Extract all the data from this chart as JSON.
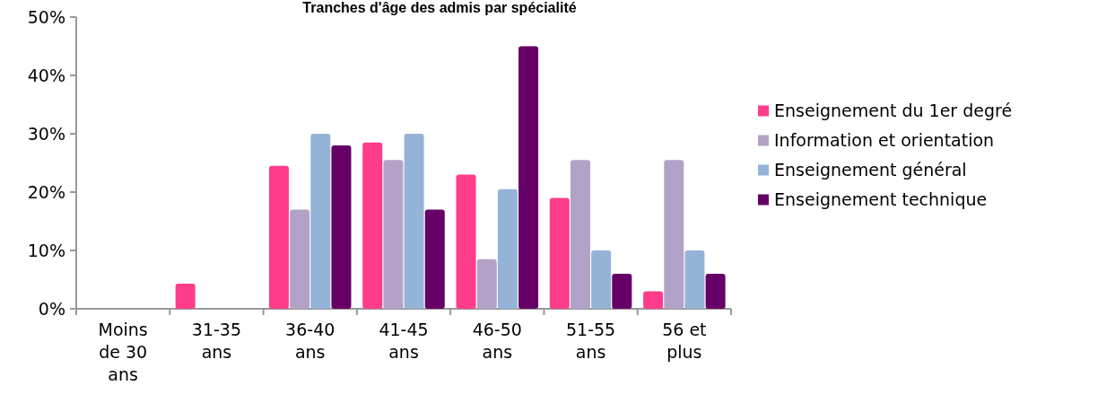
{
  "chart_data": {
    "type": "bar",
    "title": "Tranches d'âge des admis par spécialité",
    "categories": [
      "Moins de 30 ans",
      "31-35 ans",
      "36-40 ans",
      "41-45 ans",
      "46-50 ans",
      "51-55 ans",
      "56 et plus"
    ],
    "series": [
      {
        "name": "Enseignement du 1er degré",
        "color": "#ff3d8b",
        "values": [
          0,
          4.3,
          24.5,
          28.5,
          23,
          19,
          3
        ]
      },
      {
        "name": "Information et orientation",
        "color": "#b3a2c7",
        "values": [
          0,
          0,
          17,
          25.5,
          8.5,
          25.5,
          25.5
        ]
      },
      {
        "name": "Enseignement général",
        "color": "#95b3d7",
        "values": [
          0,
          0,
          30,
          30,
          20.5,
          10,
          10
        ]
      },
      {
        "name": "Enseignement technique",
        "color": "#660066",
        "values": [
          0,
          0,
          28,
          17,
          45,
          6,
          6
        ]
      }
    ],
    "ylim": [
      0,
      50
    ],
    "yticks": [
      {
        "value": 0,
        "label": "0%"
      },
      {
        "value": 10,
        "label": "10%"
      },
      {
        "value": 20,
        "label": "20%"
      },
      {
        "value": 30,
        "label": "30%"
      },
      {
        "value": 40,
        "label": "40%"
      },
      {
        "value": 50,
        "label": "50%"
      }
    ],
    "grid": false,
    "legend": "right"
  }
}
